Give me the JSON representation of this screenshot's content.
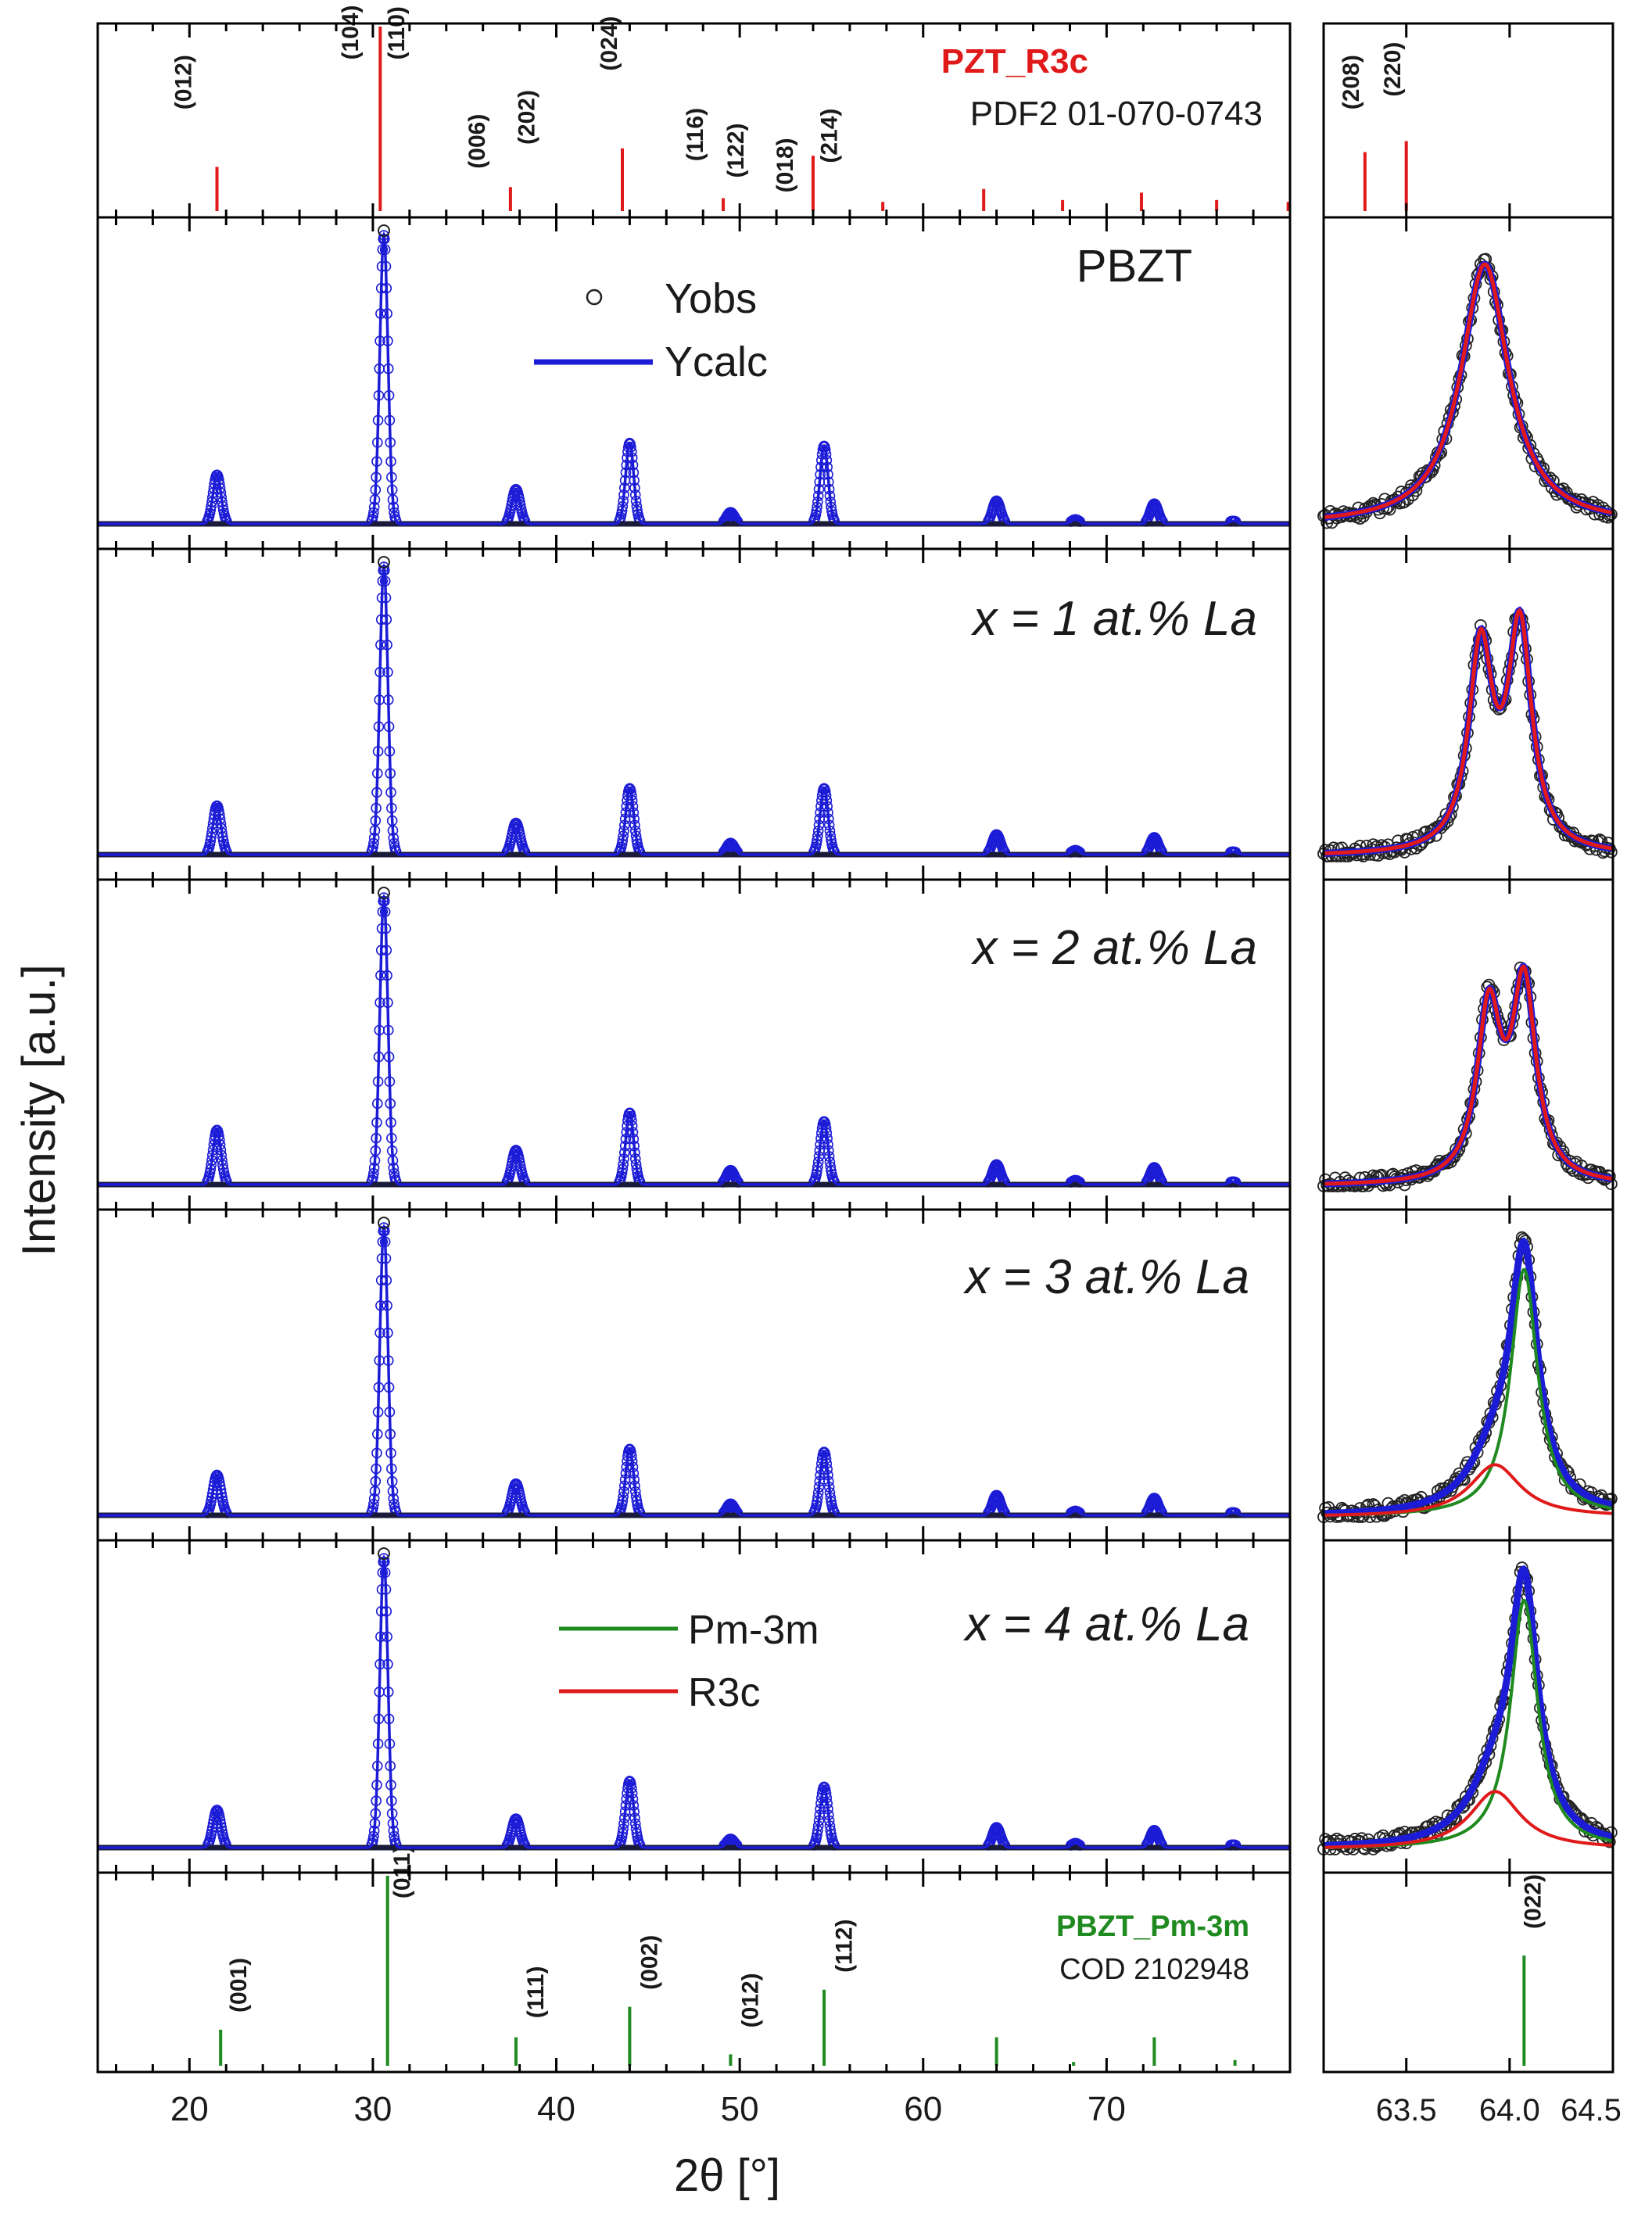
{
  "figure": {
    "xlabel": "2θ  [°]",
    "ylabel": "Intensity  [a.u.]",
    "colors": {
      "red": "#e01a1a",
      "green": "#1f8a1f",
      "blue": "#1c1cd6",
      "obs": "#222222",
      "frame": "#000000"
    }
  },
  "chart_data": [
    {
      "type": "bar",
      "panel": "reference-R3c",
      "title": "PZT_R3c",
      "subtitle": "PDF2 01-070-0743",
      "x": [
        21.5,
        30.4,
        37.5,
        43.6,
        49.1,
        54.0,
        57.8,
        63.3,
        67.6,
        71.9,
        76.0,
        79.9
      ],
      "values": [
        0.24,
        1.0,
        0.13,
        0.34,
        0.07,
        0.3,
        0.05,
        0.12,
        0.06,
        0.1,
        0.06,
        0.05
      ],
      "labels": [
        {
          "text": "(012)",
          "x": 20.1,
          "y": 0.55
        },
        {
          "text": "(104)",
          "x": 29.2,
          "y": 0.82
        },
        {
          "text": "(110)",
          "x": 31.7,
          "y": 0.82
        },
        {
          "text": "(006)",
          "x": 36.1,
          "y": 0.23
        },
        {
          "text": "(202)",
          "x": 38.8,
          "y": 0.36
        },
        {
          "text": "(024)",
          "x": 43.3,
          "y": 0.76
        },
        {
          "text": "(116)",
          "x": 48.0,
          "y": 0.27
        },
        {
          "text": "(122)",
          "x": 50.2,
          "y": 0.18
        },
        {
          "text": "(018)",
          "x": 52.9,
          "y": 0.1
        },
        {
          "text": "(214)",
          "x": 55.3,
          "y": 0.26
        }
      ],
      "xlim": [
        15,
        80
      ]
    },
    {
      "type": "line",
      "panel": "PBZT",
      "label": "PBZT",
      "peaks_x": [
        21.5,
        30.6,
        37.8,
        44.0,
        49.5,
        54.6,
        64.0,
        68.3,
        72.6,
        76.9
      ],
      "peaks_y": [
        0.17,
        1.0,
        0.12,
        0.28,
        0.04,
        0.27,
        0.08,
        0.015,
        0.07,
        0.01
      ],
      "legend": [
        "Yobs",
        "Ycalc"
      ],
      "xlim": [
        15,
        80
      ]
    },
    {
      "type": "line",
      "panel": "x1",
      "label": "x = 1 at.% La",
      "peaks_x": [
        21.5,
        30.6,
        37.8,
        44.0,
        49.5,
        54.6,
        64.0,
        68.3,
        72.6,
        76.9
      ],
      "peaks_y": [
        0.17,
        1.0,
        0.11,
        0.23,
        0.04,
        0.23,
        0.07,
        0.015,
        0.06,
        0.01
      ],
      "xlim": [
        15,
        80
      ]
    },
    {
      "type": "line",
      "panel": "x2",
      "label": "x = 2 at.% La",
      "peaks_x": [
        21.5,
        30.6,
        37.8,
        44.0,
        49.5,
        54.6,
        64.0,
        68.3,
        72.6,
        76.9
      ],
      "peaks_y": [
        0.19,
        1.0,
        0.12,
        0.25,
        0.05,
        0.22,
        0.07,
        0.015,
        0.06,
        0.01
      ],
      "xlim": [
        15,
        80
      ]
    },
    {
      "type": "line",
      "panel": "x3",
      "label": "x = 3 at.% La",
      "peaks_x": [
        21.5,
        30.6,
        37.8,
        44.0,
        49.5,
        54.6,
        64.0,
        68.3,
        72.6,
        76.9
      ],
      "peaks_y": [
        0.14,
        1.0,
        0.11,
        0.23,
        0.04,
        0.22,
        0.07,
        0.015,
        0.06,
        0.01
      ],
      "xlim": [
        15,
        80
      ]
    },
    {
      "type": "line",
      "panel": "x4",
      "label": "x = 4 at.% La",
      "peaks_x": [
        21.5,
        30.6,
        37.8,
        44.0,
        49.5,
        54.6,
        64.0,
        68.3,
        72.6,
        76.9
      ],
      "peaks_y": [
        0.13,
        1.0,
        0.1,
        0.23,
        0.03,
        0.21,
        0.07,
        0.015,
        0.06,
        0.01
      ],
      "legend": [
        "Pm-3m",
        "R3c"
      ],
      "xlim": [
        15,
        80
      ]
    },
    {
      "type": "bar",
      "panel": "reference-Pm3m",
      "title": "PBZT_Pm-3m",
      "subtitle": "COD 2102948",
      "x": [
        21.7,
        30.8,
        37.8,
        44.0,
        49.5,
        54.6,
        64.0,
        68.2,
        72.6,
        77.0
      ],
      "values": [
        0.19,
        1.0,
        0.15,
        0.31,
        0.06,
        0.4,
        0.15,
        0.02,
        0.15,
        0.03
      ],
      "labels": [
        {
          "text": "(001)",
          "x": 23.1,
          "y": 0.28
        },
        {
          "text": "(011)",
          "x": 32.0,
          "y": 0.88
        },
        {
          "text": "(111)",
          "x": 39.3,
          "y": 0.25
        },
        {
          "text": "(002)",
          "x": 45.5,
          "y": 0.4
        },
        {
          "text": "(012)",
          "x": 51.0,
          "y": 0.2
        },
        {
          "text": "(112)",
          "x": 56.1,
          "y": 0.49
        }
      ],
      "xlim": [
        15,
        80
      ]
    },
    {
      "type": "bar",
      "panel": "zoom-reference-R3c",
      "x": [
        63.3,
        63.5
      ],
      "values": [
        0.32,
        0.38
      ],
      "labels": [
        {
          "text": "(208)",
          "x": 63.27,
          "y": 0.55
        },
        {
          "text": "(220)",
          "x": 63.47,
          "y": 0.62
        }
      ],
      "xlim": [
        63.1,
        64.5
      ]
    },
    {
      "type": "line",
      "panel": "zoom-PBZT",
      "peaks": [
        {
          "x": 63.88,
          "y": 1.0,
          "w": 0.14
        }
      ],
      "xlim": [
        63.1,
        64.5
      ]
    },
    {
      "type": "line",
      "panel": "zoom-x1",
      "peaks": [
        {
          "x": 63.86,
          "y": 0.77,
          "w": 0.07
        },
        {
          "x": 64.05,
          "y": 0.85,
          "w": 0.07
        }
      ],
      "xlim": [
        63.1,
        64.5
      ]
    },
    {
      "type": "line",
      "panel": "zoom-x2",
      "peaks": [
        {
          "x": 63.9,
          "y": 0.65,
          "w": 0.07
        },
        {
          "x": 64.07,
          "y": 0.75,
          "w": 0.07
        }
      ],
      "xlim": [
        63.1,
        64.5
      ]
    },
    {
      "type": "line",
      "panel": "zoom-x3",
      "series": [
        {
          "name": "Pm-3m",
          "x0": 64.07,
          "height": 0.95,
          "width": 0.08
        },
        {
          "name": "R3c",
          "x0": 63.93,
          "height": 0.2,
          "width": 0.15
        }
      ],
      "xlim": [
        63.1,
        64.5
      ]
    },
    {
      "type": "line",
      "panel": "zoom-x4",
      "series": [
        {
          "name": "Pm-3m",
          "x0": 64.07,
          "height": 0.95,
          "width": 0.08
        },
        {
          "name": "R3c",
          "x0": 63.93,
          "height": 0.22,
          "width": 0.15
        }
      ],
      "xlim": [
        63.1,
        64.5
      ]
    },
    {
      "type": "bar",
      "panel": "zoom-reference-Pm3m",
      "x": [
        64.07
      ],
      "values": [
        0.58
      ],
      "labels": [
        {
          "text": "(022)",
          "x": 64.15,
          "y": 0.72
        }
      ],
      "xlim": [
        63.1,
        64.5
      ]
    }
  ],
  "axes": {
    "main_ticks": [
      "20",
      "30",
      "40",
      "50",
      "60",
      "70"
    ],
    "zoom_ticks": [
      "63.5",
      "64.0",
      "64.5"
    ]
  }
}
